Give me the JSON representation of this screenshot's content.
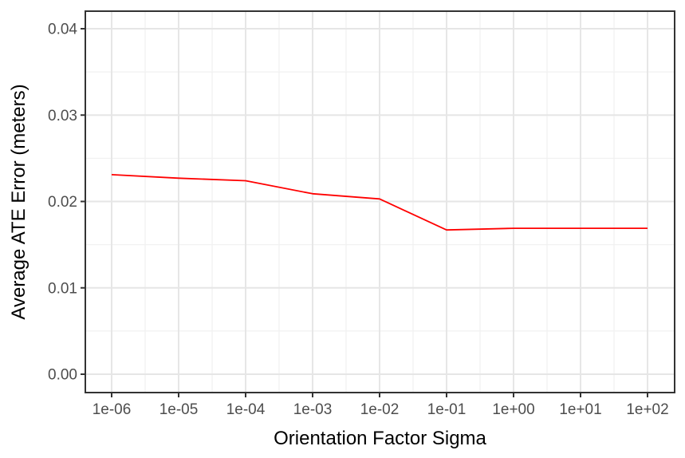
{
  "chart_data": {
    "type": "line",
    "title": "",
    "xlabel": "Orientation Factor Sigma",
    "ylabel": "Average ATE Error (meters)",
    "x_scale": "log10",
    "xlim_log": [
      -6,
      2
    ],
    "ylim": [
      0,
      0.04
    ],
    "x": [
      1e-06,
      1e-05,
      0.0001,
      0.001,
      0.01,
      0.1,
      1,
      10,
      100
    ],
    "x_tick_labels": [
      "1e-06",
      "1e-05",
      "1e-04",
      "1e-03",
      "1e-02",
      "1e-01",
      "1e+00",
      "1e+01",
      "1e+02"
    ],
    "y_ticks": [
      0,
      0.01,
      0.02,
      0.03,
      0.04
    ],
    "y_tick_labels": [
      "0.00",
      "0.01",
      "0.02",
      "0.03",
      "0.04"
    ],
    "y_minor_ticks": [
      0.005,
      0.015,
      0.025,
      0.035
    ],
    "series": [
      {
        "name": "average-ate-error",
        "color": "#FF0000",
        "values": [
          0.0231,
          0.0227,
          0.0224,
          0.0209,
          0.0203,
          0.0167,
          0.0169,
          0.0169,
          0.0169
        ]
      }
    ],
    "grid": "on",
    "legend": "none",
    "colors": {
      "line": "#FF0000",
      "axis_text": "#4D4D4D",
      "axis_title": "#000000",
      "panel_border": "#333333",
      "tick_mark": "#333333",
      "grid_major": "#E6E6E6",
      "grid_minor": "#F1F1F1",
      "background": "#FFFFFF"
    }
  }
}
